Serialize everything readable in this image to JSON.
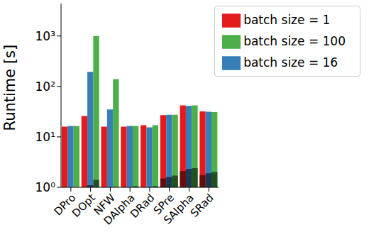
{
  "chart_data": {
    "type": "bar",
    "log": "y",
    "grid": false,
    "legend": "upper right",
    "y_label": "Runtime [s]",
    "categories": [
      "DPro",
      "DOpt",
      "NFW",
      "DAlpha",
      "DRad",
      "SPre",
      "SAlpha",
      "SRad"
    ],
    "ylim": [
      1,
      4400
    ],
    "yticks": [
      {
        "value": 1,
        "label": "10⁰"
      },
      {
        "value": 10,
        "label": "10¹"
      },
      {
        "value": 100,
        "label": "10²"
      },
      {
        "value": 1000,
        "label": "10³"
      }
    ],
    "series": [
      {
        "name": "batch size = 1",
        "color": "#e41a1c",
        "values": [
          16,
          26,
          16,
          16,
          17,
          27,
          42,
          32
        ],
        "inner_values": [
          null,
          null,
          null,
          null,
          null,
          1.5,
          2.1,
          1.75
        ]
      },
      {
        "name": "batch size = 16",
        "color": "#377eb8",
        "values": [
          16.5,
          195,
          35,
          16.5,
          15.5,
          27.5,
          41,
          31.5
        ],
        "inner_values": [
          null,
          1.1,
          null,
          null,
          null,
          1.6,
          2.3,
          1.9
        ]
      },
      {
        "name": "batch size = 100",
        "color": "#4daf4a",
        "values": [
          16.5,
          1000,
          140,
          16.5,
          17,
          27.5,
          42,
          31
        ],
        "inner_values": [
          null,
          1.4,
          null,
          1.05,
          1.05,
          1.7,
          2.4,
          2.0
        ]
      }
    ]
  }
}
